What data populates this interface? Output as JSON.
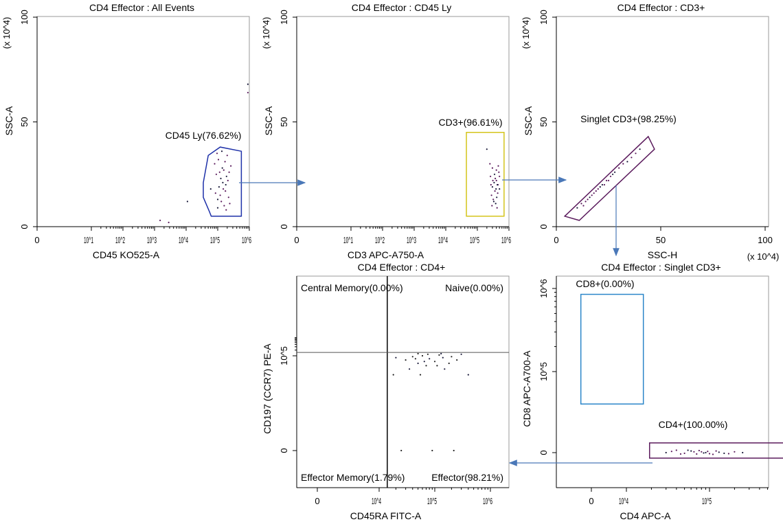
{
  "chart_data": [
    {
      "id": "p1",
      "type": "scatter",
      "title": "CD4 Effector : All Events",
      "xlabel": "CD45 KO525-A",
      "ylabel": "SSC-A",
      "y_multiplier": "(x 10^4)",
      "x_scale": "biexponential",
      "x_ticks": [
        "0",
        "10^1",
        "10^2",
        "10^3",
        "10^4",
        "10^5",
        "10^6"
      ],
      "y_scale": "linear",
      "ylim": [
        0,
        100
      ],
      "y_ticks": [
        "0",
        "50",
        "100"
      ],
      "gate": {
        "label": "CD45 Ly(76.62%)",
        "color": "#1c2fa8",
        "shape": "polygon",
        "vertices": [
          [
            35000,
            21
          ],
          [
            50000,
            34
          ],
          [
            120000,
            38
          ],
          [
            560000,
            36
          ],
          [
            560000,
            5
          ],
          [
            62000,
            5
          ],
          [
            55000,
            7
          ],
          [
            35000,
            14
          ]
        ]
      },
      "events": [
        [
          100000,
          13
        ],
        [
          120000,
          15
        ],
        [
          150000,
          18
        ],
        [
          180000,
          20
        ],
        [
          210000,
          22
        ],
        [
          90000,
          25
        ],
        [
          140000,
          28
        ],
        [
          170000,
          31
        ],
        [
          200000,
          34
        ],
        [
          110000,
          19
        ],
        [
          160000,
          10
        ],
        [
          130000,
          12
        ],
        [
          190000,
          24
        ],
        [
          230000,
          26
        ],
        [
          85000,
          16
        ],
        [
          125000,
          23
        ],
        [
          260000,
          29
        ],
        [
          105000,
          32
        ],
        [
          145000,
          21
        ],
        [
          175000,
          17
        ],
        [
          155000,
          27
        ],
        [
          100000,
          9
        ],
        [
          220000,
          14
        ],
        [
          80000,
          30
        ],
        [
          60000,
          18
        ],
        [
          95000,
          35
        ],
        [
          240000,
          11
        ],
        [
          135000,
          36
        ],
        [
          185000,
          8
        ],
        [
          115000,
          26
        ],
        [
          11000,
          12
        ],
        [
          1500,
          3
        ],
        [
          2800,
          2
        ],
        [
          900000,
          68
        ],
        [
          900000,
          64
        ]
      ]
    },
    {
      "id": "p2",
      "type": "scatter",
      "title": "CD4 Effector : CD45 Ly",
      "xlabel": "CD3 APC-A750-A",
      "ylabel": "SSC-A",
      "y_multiplier": "(x 10^4)",
      "x_scale": "biexponential",
      "x_ticks": [
        "0",
        "10^1",
        "10^2",
        "10^3",
        "10^4",
        "10^5",
        "10^6"
      ],
      "y_scale": "linear",
      "ylim": [
        0,
        100
      ],
      "y_ticks": [
        "0",
        "50",
        "100"
      ],
      "gate": {
        "label": "CD3+(96.61%)",
        "color": "#d4c41a",
        "shape": "rectangle",
        "x_range": [
          45000,
          700000
        ],
        "y_range": [
          5,
          45
        ]
      },
      "events": [
        [
          200000,
          37
        ],
        [
          250000,
          30
        ],
        [
          300000,
          28
        ],
        [
          350000,
          25
        ],
        [
          400000,
          22
        ],
        [
          450000,
          20
        ],
        [
          500000,
          18
        ],
        [
          280000,
          15
        ],
        [
          320000,
          13
        ],
        [
          380000,
          11
        ],
        [
          420000,
          9
        ],
        [
          260000,
          24
        ],
        [
          340000,
          21
        ],
        [
          360000,
          17
        ],
        [
          480000,
          26
        ],
        [
          300000,
          19
        ],
        [
          400000,
          27
        ],
        [
          440000,
          16
        ],
        [
          330000,
          12
        ],
        [
          270000,
          20
        ],
        [
          370000,
          23
        ],
        [
          410000,
          14
        ],
        [
          290000,
          10
        ],
        [
          460000,
          29
        ],
        [
          390000,
          18
        ],
        [
          500000,
          24
        ],
        [
          310000,
          22
        ],
        [
          430000,
          20
        ]
      ]
    },
    {
      "id": "p3",
      "type": "scatter",
      "title": "CD4 Effector : CD3+",
      "xlabel": "SSC-H",
      "ylabel": "SSC-A",
      "x_multiplier": "(x 10^4)",
      "y_multiplier": "(x 10^4)",
      "x_scale": "linear",
      "xlim": [
        0,
        100
      ],
      "x_ticks": [
        "0",
        "50",
        "100"
      ],
      "y_scale": "linear",
      "ylim": [
        0,
        100
      ],
      "y_ticks": [
        "0",
        "50",
        "100"
      ],
      "gate": {
        "label": "Singlet CD3+(98.25%)",
        "color": "#5a1a5c",
        "shape": "polygon",
        "vertices": [
          [
            4,
            5
          ],
          [
            44,
            43
          ],
          [
            47,
            37
          ],
          [
            11,
            3
          ]
        ]
      },
      "events": [
        [
          10,
          9
        ],
        [
          12,
          11
        ],
        [
          14,
          12
        ],
        [
          16,
          14
        ],
        [
          18,
          16
        ],
        [
          20,
          18
        ],
        [
          22,
          20
        ],
        [
          24,
          22
        ],
        [
          26,
          24
        ],
        [
          28,
          26
        ],
        [
          30,
          28
        ],
        [
          32,
          30
        ],
        [
          34,
          31
        ],
        [
          36,
          33
        ],
        [
          38,
          35
        ],
        [
          40,
          37
        ],
        [
          15,
          13
        ],
        [
          19,
          17
        ],
        [
          21,
          19
        ],
        [
          23,
          20
        ],
        [
          25,
          22
        ],
        [
          27,
          25
        ],
        [
          17,
          15
        ],
        [
          13,
          10
        ]
      ]
    },
    {
      "id": "p4",
      "type": "scatter",
      "title": "CD4 Effector : CD4+",
      "xlabel": "CD45RA FITC-A",
      "ylabel": "CD197 (CCR7) PE-A",
      "x_scale": "biexponential",
      "x_ticks": [
        "0",
        "10^4",
        "10^5",
        "10^6"
      ],
      "y_scale": "biexponential",
      "y_ticks": [
        "0",
        "10^5"
      ],
      "quadrants": {
        "x_split": 14000,
        "y_split": 150000,
        "labels": {
          "top_left": "Central Memory(0.00%)",
          "top_right": "Naive(0.00%)",
          "bottom_left": "Effector Memory(1.79%)",
          "bottom_right": "Effector(98.21%)"
        }
      },
      "events": [
        [
          20000,
          80000
        ],
        [
          30000,
          60000
        ],
        [
          40000,
          90000
        ],
        [
          50000,
          40000
        ],
        [
          60000,
          100000
        ],
        [
          70000,
          30000
        ],
        [
          80000,
          70000
        ],
        [
          100000,
          50000
        ],
        [
          120000,
          110000
        ],
        [
          150000,
          20000
        ],
        [
          200000,
          90000
        ],
        [
          250000,
          60000
        ],
        [
          300000,
          120000
        ],
        [
          18000,
          10000
        ],
        [
          25000,
          0
        ],
        [
          35000,
          20000
        ],
        [
          45000,
          70000
        ],
        [
          55000,
          10000
        ],
        [
          65000,
          50000
        ],
        [
          90000,
          0
        ],
        [
          110000,
          30000
        ],
        [
          140000,
          80000
        ],
        [
          180000,
          40000
        ],
        [
          220000,
          0
        ],
        [
          400000,
          10000
        ],
        [
          50000,
          130000
        ],
        [
          75000,
          120000
        ],
        [
          130000,
          130000
        ]
      ]
    },
    {
      "id": "p5",
      "type": "scatter",
      "title": "CD4 Effector : Singlet CD3+",
      "xlabel": "CD4 APC-A",
      "ylabel": "CD8 APC-A700-A",
      "x_scale": "biexponential",
      "x_ticks": [
        "0",
        "10^4",
        "10^5"
      ],
      "y_scale": "biexponential",
      "y_ticks": [
        "0",
        "10^5",
        "10^6"
      ],
      "gates": [
        {
          "label": "CD8+(0.00%)",
          "color": "#2b86c9",
          "shape": "rectangle",
          "x_range": [
            -3000,
            16000
          ],
          "y_range": [
            60000,
            850000
          ]
        },
        {
          "label": "CD4+(100.00%)",
          "color": "#5a1a5c",
          "shape": "rectangle",
          "x_range": [
            19000,
            1000000
          ],
          "y_range": [
            -8000,
            12000
          ]
        }
      ],
      "events": [
        [
          30000,
          0
        ],
        [
          40000,
          3000
        ],
        [
          50000,
          -1000
        ],
        [
          60000,
          2000
        ],
        [
          70000,
          -2000
        ],
        [
          80000,
          1000
        ],
        [
          90000,
          0
        ],
        [
          100000,
          -1500
        ],
        [
          120000,
          2000
        ],
        [
          150000,
          -1000
        ],
        [
          200000,
          1000
        ],
        [
          45000,
          -2000
        ],
        [
          55000,
          3000
        ],
        [
          65000,
          1000
        ],
        [
          75000,
          2500
        ],
        [
          85000,
          -500
        ],
        [
          95000,
          1500
        ],
        [
          110000,
          -2500
        ],
        [
          130000,
          500
        ],
        [
          35000,
          1500
        ],
        [
          170000,
          -1500
        ],
        [
          250000,
          0
        ]
      ]
    }
  ],
  "arrow_color": "#4a78b8"
}
